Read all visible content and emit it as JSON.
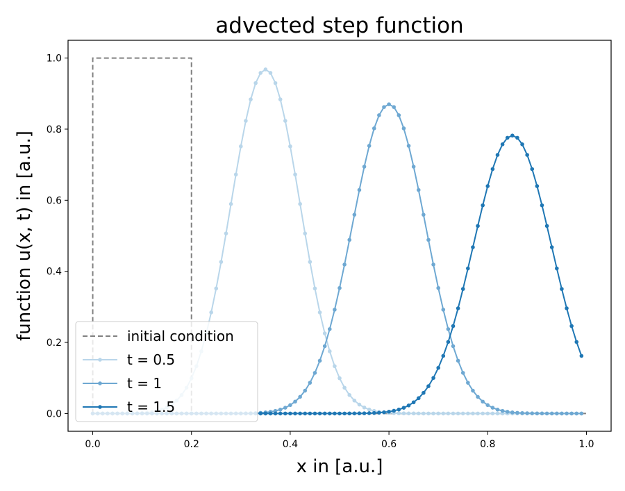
{
  "chart_data": {
    "type": "line",
    "title": "advected step function",
    "xlabel": "x in [a.u.]",
    "ylabel": "function u(x, t) in [a.u.]",
    "xlim": [
      -0.05,
      1.05
    ],
    "ylim": [
      -0.05,
      1.05
    ],
    "xticks": [
      0.0,
      0.2,
      0.4,
      0.6,
      0.8,
      1.0
    ],
    "xtick_labels": [
      "0.0",
      "0.2",
      "0.4",
      "0.6",
      "0.8",
      "1.0"
    ],
    "yticks": [
      0.0,
      0.2,
      0.4,
      0.6,
      0.8,
      1.0
    ],
    "ytick_labels": [
      "0.0",
      "0.2",
      "0.4",
      "0.6",
      "0.8",
      "1.0"
    ],
    "grid": false,
    "legend_position": "lower-left",
    "series": [
      {
        "name": "initial condition",
        "style": "dashed",
        "color": "#808080",
        "markers": false,
        "x": [
          0.0,
          0.0,
          0.2,
          0.2,
          0.4,
          0.6,
          0.8,
          1.0
        ],
        "y": [
          0.0,
          1.0,
          1.0,
          0.0,
          0.0,
          0.0,
          0.0,
          0.0
        ]
      },
      {
        "name": "t = 0.5",
        "style": "solid",
        "color": "#b9d6ea",
        "markers": true,
        "profile": {
          "center": 0.35,
          "peak": 0.968,
          "width": 0.0994,
          "x_start": 0.0,
          "x_end": 0.995,
          "x_step": 0.01
        }
      },
      {
        "name": "t = 1",
        "style": "solid",
        "color": "#6ea8d2",
        "markers": true,
        "profile": {
          "center": 0.6,
          "peak": 0.87,
          "width": 0.1053,
          "x_start": 0.0,
          "x_end": 0.995,
          "x_step": 0.01
        }
      },
      {
        "name": "t = 1.5",
        "style": "solid",
        "color": "#1f77b4",
        "markers": true,
        "profile": {
          "center": 0.85,
          "peak": 0.782,
          "width": 0.1116,
          "x_start": 0.0,
          "x_end": 0.995,
          "x_step": 0.01
        }
      }
    ]
  }
}
